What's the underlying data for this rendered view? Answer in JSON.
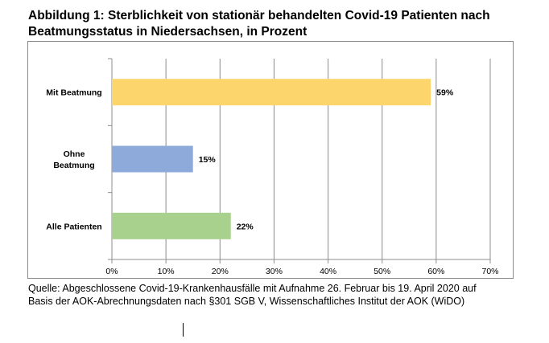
{
  "figure": {
    "title_line1": "Abbildung 1: Sterblichkeit von stationär behandelten Covid-19 Patienten nach",
    "title_line2": "Beatmungsstatus in Niedersachsen, in Prozent",
    "source_line1": "Quelle: Abgeschlossene Covid-19-Krankenhausfälle mit Aufnahme 26. Februar bis 19. April 2020 auf",
    "source_line2": "Basis der AOK-Abrechnungsdaten nach §301 SGB V, Wissenschaftliches Institut der AOK (WiDO)"
  },
  "chart_data": {
    "type": "bar",
    "orientation": "horizontal",
    "categories": [
      [
        "Mit Beatmung"
      ],
      [
        "Ohne",
        "Beatmung"
      ],
      [
        "Alle Patienten"
      ]
    ],
    "values": [
      59,
      15,
      22
    ],
    "value_labels": [
      "59%",
      "15%",
      "22%"
    ],
    "colors": [
      "#fcd66c",
      "#8eaadb",
      "#a9d18e"
    ],
    "xticks": [
      "0%",
      "10%",
      "20%",
      "30%",
      "40%",
      "50%",
      "60%",
      "70%"
    ],
    "xlim": [
      0,
      70
    ],
    "grid": true
  }
}
